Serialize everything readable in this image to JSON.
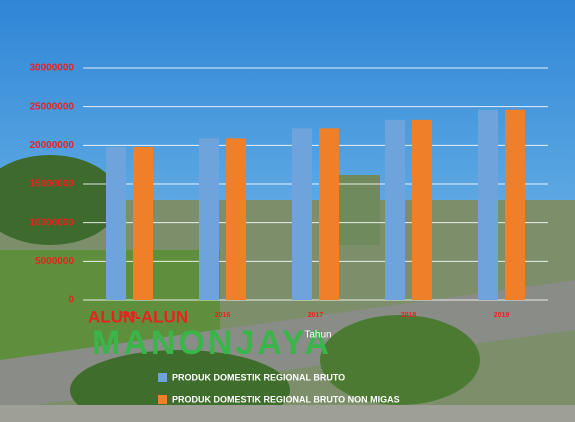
{
  "chart_data": {
    "type": "bar",
    "categories": [
      "2015",
      "2016",
      "2017",
      "2018",
      "2019"
    ],
    "series": [
      {
        "name": "PRODUK DOMESTIK REGIONAL BRUTO",
        "color": "#6fa3dc",
        "values": [
          19800000,
          20900000,
          22200000,
          23300000,
          24600000
        ]
      },
      {
        "name": "PRODUK DOMESTIK REGIONAL BRUTO NON MIGAS",
        "color": "#f07f2a",
        "values": [
          19800000,
          20900000,
          22200000,
          23300000,
          24600000
        ]
      }
    ],
    "x_label": "Tahun",
    "ylim": [
      0,
      30000000
    ],
    "yticks": [
      0,
      5000000,
      10000000,
      15000000,
      20000000,
      25000000,
      30000000
    ],
    "grid": true,
    "legend": "bottom",
    "annotations": [
      "ALUN-ALUN",
      "MANONJAYA"
    ]
  }
}
